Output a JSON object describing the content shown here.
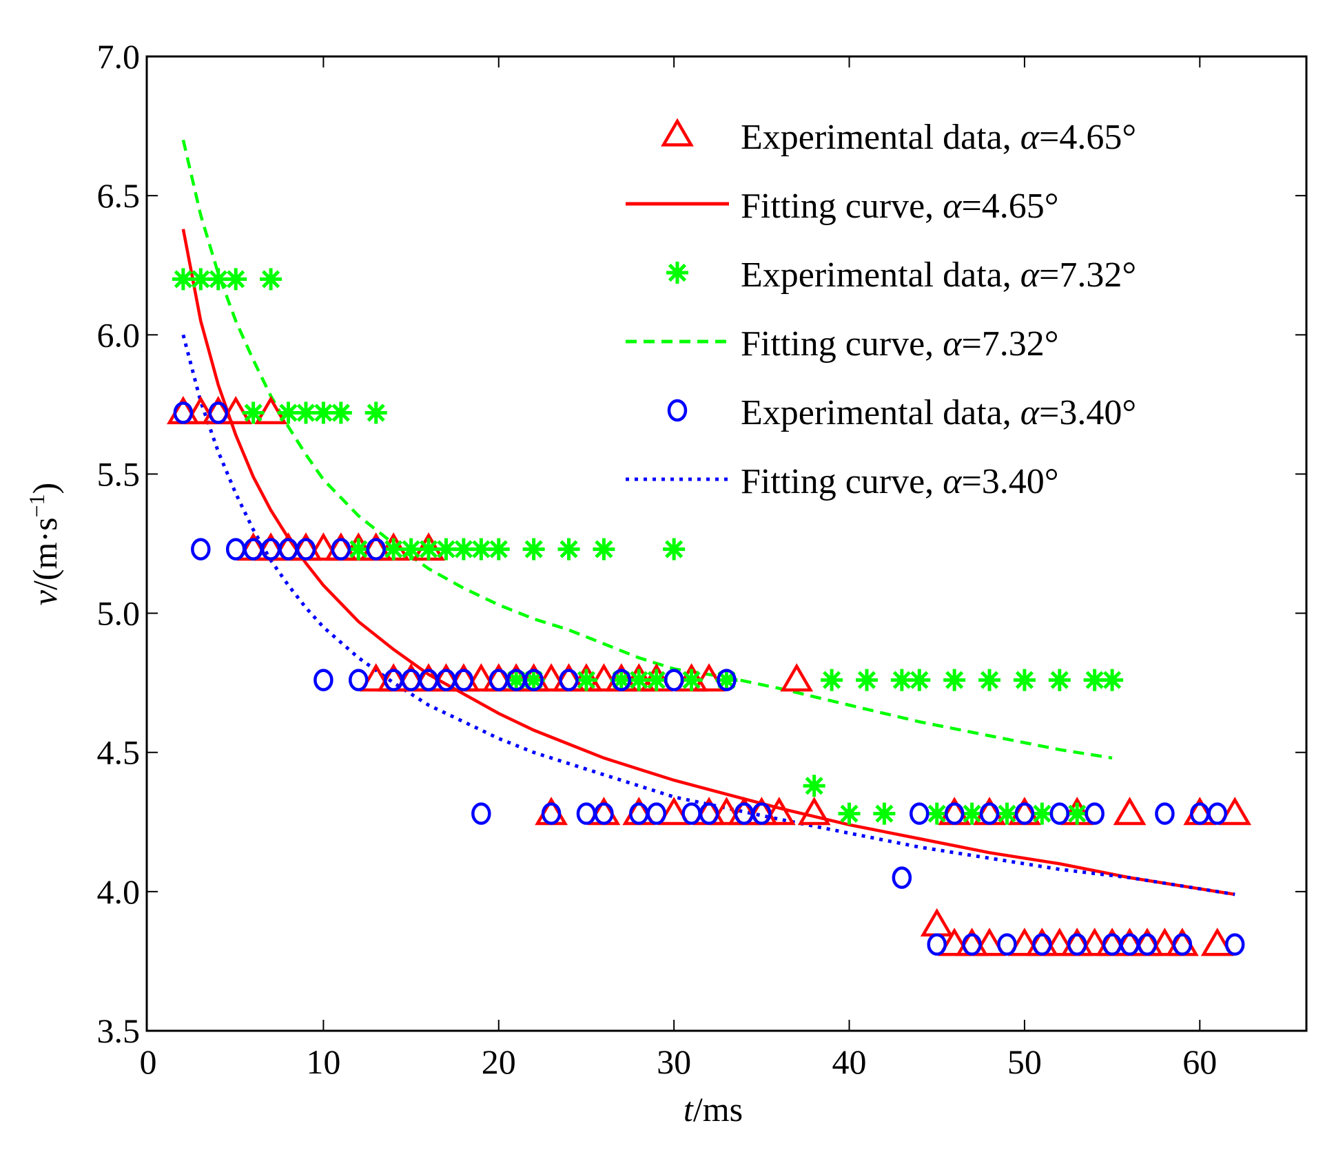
{
  "chart_data": {
    "type": "scatter",
    "title": "",
    "xlabel": "t/ms",
    "xlabel_parts": {
      "var": "t",
      "unit": "/ms"
    },
    "ylabel": "v/(m·s⁻¹)",
    "ylabel_parts": {
      "var": "v",
      "unit": "/(m·s",
      "sup": "−1",
      "close": ")"
    },
    "xlim": [
      0,
      65
    ],
    "ylim": [
      3.5,
      7.0
    ],
    "xticks": [
      0,
      10,
      20,
      30,
      40,
      50,
      60
    ],
    "xtick_labels": [
      "0",
      "10",
      "20",
      "30",
      "40",
      "50",
      "60"
    ],
    "yticks": [
      3.5,
      4.0,
      4.5,
      5.0,
      5.5,
      6.0,
      6.5,
      7.0
    ],
    "ytick_labels": [
      "3.5",
      "4.0",
      "4.5",
      "5.0",
      "5.5",
      "6.0",
      "6.5",
      "7.0"
    ],
    "grid": false,
    "legend_position": "top-right",
    "series": [
      {
        "name": "Experimental data, α=4.65°",
        "kind": "markers",
        "marker": "triangle",
        "color": "#ff0000",
        "points": [
          [
            2,
            5.72
          ],
          [
            3,
            5.72
          ],
          [
            4,
            5.72
          ],
          [
            5,
            5.72
          ],
          [
            7,
            5.72
          ],
          [
            6,
            5.23
          ],
          [
            7,
            5.23
          ],
          [
            8,
            5.23
          ],
          [
            9,
            5.23
          ],
          [
            10,
            5.23
          ],
          [
            11,
            5.23
          ],
          [
            12,
            5.23
          ],
          [
            13,
            5.23
          ],
          [
            14,
            5.23
          ],
          [
            16,
            5.23
          ],
          [
            13,
            4.76
          ],
          [
            14,
            4.76
          ],
          [
            15,
            4.76
          ],
          [
            16,
            4.76
          ],
          [
            17,
            4.76
          ],
          [
            18,
            4.76
          ],
          [
            19,
            4.76
          ],
          [
            20,
            4.76
          ],
          [
            21,
            4.76
          ],
          [
            22,
            4.76
          ],
          [
            23,
            4.76
          ],
          [
            24,
            4.76
          ],
          [
            25,
            4.76
          ],
          [
            26,
            4.76
          ],
          [
            27,
            4.76
          ],
          [
            28,
            4.76
          ],
          [
            29,
            4.76
          ],
          [
            31,
            4.76
          ],
          [
            32,
            4.76
          ],
          [
            37,
            4.76
          ],
          [
            23,
            4.28
          ],
          [
            26,
            4.28
          ],
          [
            28,
            4.28
          ],
          [
            30,
            4.28
          ],
          [
            32,
            4.28
          ],
          [
            33,
            4.28
          ],
          [
            34,
            4.28
          ],
          [
            35,
            4.28
          ],
          [
            36,
            4.28
          ],
          [
            38,
            4.28
          ],
          [
            46,
            4.28
          ],
          [
            48,
            4.28
          ],
          [
            50,
            4.28
          ],
          [
            53,
            4.28
          ],
          [
            56,
            4.28
          ],
          [
            60,
            4.28
          ],
          [
            62,
            4.28
          ],
          [
            45,
            3.88
          ],
          [
            46,
            3.81
          ],
          [
            47,
            3.81
          ],
          [
            48,
            3.81
          ],
          [
            50,
            3.81
          ],
          [
            51,
            3.81
          ],
          [
            52,
            3.81
          ],
          [
            53,
            3.81
          ],
          [
            54,
            3.81
          ],
          [
            55,
            3.81
          ],
          [
            56,
            3.81
          ],
          [
            57,
            3.81
          ],
          [
            58,
            3.81
          ],
          [
            59,
            3.81
          ],
          [
            61,
            3.81
          ]
        ]
      },
      {
        "name": "Fitting curve, α=4.65°",
        "kind": "line",
        "linestyle": "solid",
        "color": "#ff0000",
        "points": [
          [
            2,
            6.38
          ],
          [
            3,
            6.05
          ],
          [
            4,
            5.82
          ],
          [
            5,
            5.64
          ],
          [
            6,
            5.49
          ],
          [
            7,
            5.37
          ],
          [
            8,
            5.27
          ],
          [
            9,
            5.18
          ],
          [
            10,
            5.1
          ],
          [
            12,
            4.97
          ],
          [
            14,
            4.87
          ],
          [
            16,
            4.78
          ],
          [
            18,
            4.71
          ],
          [
            20,
            4.64
          ],
          [
            22,
            4.58
          ],
          [
            24,
            4.53
          ],
          [
            26,
            4.48
          ],
          [
            28,
            4.44
          ],
          [
            30,
            4.4
          ],
          [
            33,
            4.35
          ],
          [
            36,
            4.3
          ],
          [
            40,
            4.24
          ],
          [
            44,
            4.19
          ],
          [
            48,
            4.14
          ],
          [
            52,
            4.1
          ],
          [
            56,
            4.05
          ],
          [
            60,
            4.01
          ],
          [
            62,
            3.99
          ]
        ]
      },
      {
        "name": "Experimental data, α=7.32°",
        "kind": "markers",
        "marker": "asterisk",
        "color": "#00ff00",
        "points": [
          [
            2,
            6.2
          ],
          [
            3,
            6.2
          ],
          [
            4,
            6.2
          ],
          [
            5,
            6.2
          ],
          [
            7,
            6.2
          ],
          [
            6,
            5.72
          ],
          [
            8,
            5.72
          ],
          [
            9,
            5.72
          ],
          [
            10,
            5.72
          ],
          [
            11,
            5.72
          ],
          [
            13,
            5.72
          ],
          [
            12,
            5.23
          ],
          [
            14,
            5.23
          ],
          [
            15,
            5.23
          ],
          [
            16,
            5.23
          ],
          [
            17,
            5.23
          ],
          [
            18,
            5.23
          ],
          [
            19,
            5.23
          ],
          [
            20,
            5.23
          ],
          [
            22,
            5.23
          ],
          [
            24,
            5.23
          ],
          [
            26,
            5.23
          ],
          [
            30,
            5.23
          ],
          [
            21,
            4.76
          ],
          [
            22,
            4.76
          ],
          [
            25,
            4.76
          ],
          [
            27,
            4.76
          ],
          [
            28,
            4.76
          ],
          [
            29,
            4.76
          ],
          [
            31,
            4.76
          ],
          [
            33,
            4.76
          ],
          [
            39,
            4.76
          ],
          [
            41,
            4.76
          ],
          [
            43,
            4.76
          ],
          [
            44,
            4.76
          ],
          [
            46,
            4.76
          ],
          [
            48,
            4.76
          ],
          [
            50,
            4.76
          ],
          [
            52,
            4.76
          ],
          [
            54,
            4.76
          ],
          [
            55,
            4.76
          ],
          [
            38,
            4.38
          ],
          [
            40,
            4.28
          ],
          [
            42,
            4.28
          ],
          [
            45,
            4.28
          ],
          [
            47,
            4.28
          ],
          [
            49,
            4.28
          ],
          [
            51,
            4.28
          ],
          [
            53,
            4.28
          ]
        ]
      },
      {
        "name": "Fitting curve, α=7.32°",
        "kind": "line",
        "linestyle": "dashed",
        "color": "#00ff00",
        "points": [
          [
            2,
            6.7
          ],
          [
            3,
            6.43
          ],
          [
            4,
            6.22
          ],
          [
            5,
            6.05
          ],
          [
            6,
            5.91
          ],
          [
            7,
            5.78
          ],
          [
            8,
            5.67
          ],
          [
            9,
            5.57
          ],
          [
            10,
            5.48
          ],
          [
            12,
            5.35
          ],
          [
            14,
            5.25
          ],
          [
            16,
            5.16
          ],
          [
            18,
            5.09
          ],
          [
            20,
            5.03
          ],
          [
            22,
            4.98
          ],
          [
            24,
            4.94
          ],
          [
            26,
            4.89
          ],
          [
            28,
            4.84
          ],
          [
            30,
            4.8
          ],
          [
            33,
            4.77
          ],
          [
            36,
            4.73
          ],
          [
            40,
            4.67
          ],
          [
            44,
            4.61
          ],
          [
            48,
            4.56
          ],
          [
            52,
            4.51
          ],
          [
            55,
            4.48
          ]
        ]
      },
      {
        "name": "Experimental data, α=3.40°",
        "kind": "markers",
        "marker": "circle",
        "color": "#0000ff",
        "points": [
          [
            2,
            5.72
          ],
          [
            4,
            5.72
          ],
          [
            3,
            5.23
          ],
          [
            5,
            5.23
          ],
          [
            6,
            5.23
          ],
          [
            7,
            5.23
          ],
          [
            8,
            5.23
          ],
          [
            9,
            5.23
          ],
          [
            11,
            5.23
          ],
          [
            13,
            5.23
          ],
          [
            10,
            4.76
          ],
          [
            12,
            4.76
          ],
          [
            14,
            4.76
          ],
          [
            15,
            4.76
          ],
          [
            16,
            4.76
          ],
          [
            17,
            4.76
          ],
          [
            18,
            4.76
          ],
          [
            20,
            4.76
          ],
          [
            21,
            4.76
          ],
          [
            22,
            4.76
          ],
          [
            24,
            4.76
          ],
          [
            27,
            4.76
          ],
          [
            30,
            4.76
          ],
          [
            33,
            4.76
          ],
          [
            19,
            4.28
          ],
          [
            23,
            4.28
          ],
          [
            25,
            4.28
          ],
          [
            26,
            4.28
          ],
          [
            28,
            4.28
          ],
          [
            29,
            4.28
          ],
          [
            31,
            4.28
          ],
          [
            32,
            4.28
          ],
          [
            34,
            4.28
          ],
          [
            35,
            4.28
          ],
          [
            44,
            4.28
          ],
          [
            46,
            4.28
          ],
          [
            48,
            4.28
          ],
          [
            50,
            4.28
          ],
          [
            52,
            4.28
          ],
          [
            54,
            4.28
          ],
          [
            58,
            4.28
          ],
          [
            60,
            4.28
          ],
          [
            61,
            4.28
          ],
          [
            43,
            4.05
          ],
          [
            45,
            3.81
          ],
          [
            47,
            3.81
          ],
          [
            49,
            3.81
          ],
          [
            51,
            3.81
          ],
          [
            53,
            3.81
          ],
          [
            55,
            3.81
          ],
          [
            56,
            3.81
          ],
          [
            57,
            3.81
          ],
          [
            59,
            3.81
          ],
          [
            62,
            3.81
          ]
        ]
      },
      {
        "name": "Fitting curve, α=3.40°",
        "kind": "line",
        "linestyle": "dotted",
        "color": "#0000ff",
        "points": [
          [
            2,
            6.0
          ],
          [
            3,
            5.76
          ],
          [
            4,
            5.58
          ],
          [
            5,
            5.43
          ],
          [
            6,
            5.3
          ],
          [
            7,
            5.19
          ],
          [
            8,
            5.1
          ],
          [
            9,
            5.02
          ],
          [
            10,
            4.95
          ],
          [
            12,
            4.84
          ],
          [
            14,
            4.75
          ],
          [
            16,
            4.67
          ],
          [
            18,
            4.61
          ],
          [
            20,
            4.55
          ],
          [
            22,
            4.5
          ],
          [
            24,
            4.46
          ],
          [
            26,
            4.42
          ],
          [
            28,
            4.38
          ],
          [
            30,
            4.34
          ],
          [
            33,
            4.3
          ],
          [
            36,
            4.26
          ],
          [
            40,
            4.21
          ],
          [
            44,
            4.16
          ],
          [
            48,
            4.12
          ],
          [
            52,
            4.08
          ],
          [
            56,
            4.05
          ],
          [
            60,
            4.01
          ],
          [
            62,
            3.99
          ]
        ]
      }
    ],
    "legend": [
      {
        "label": "Experimental data, ",
        "alpha": "α",
        "value": "=4.65°",
        "ref": 0
      },
      {
        "label": "Fitting curve, ",
        "alpha": "α",
        "value": "=4.65°",
        "ref": 1
      },
      {
        "label": "Experimental data, ",
        "alpha": "α",
        "value": "=7.32°",
        "ref": 2
      },
      {
        "label": "Fitting curve, ",
        "alpha": "α",
        "value": "=7.32°",
        "ref": 3
      },
      {
        "label": "Experimental data, ",
        "alpha": "α",
        "value": "=3.40°",
        "ref": 4
      },
      {
        "label": "Fitting curve, ",
        "alpha": "α",
        "value": "=3.40°",
        "ref": 5
      }
    ]
  }
}
